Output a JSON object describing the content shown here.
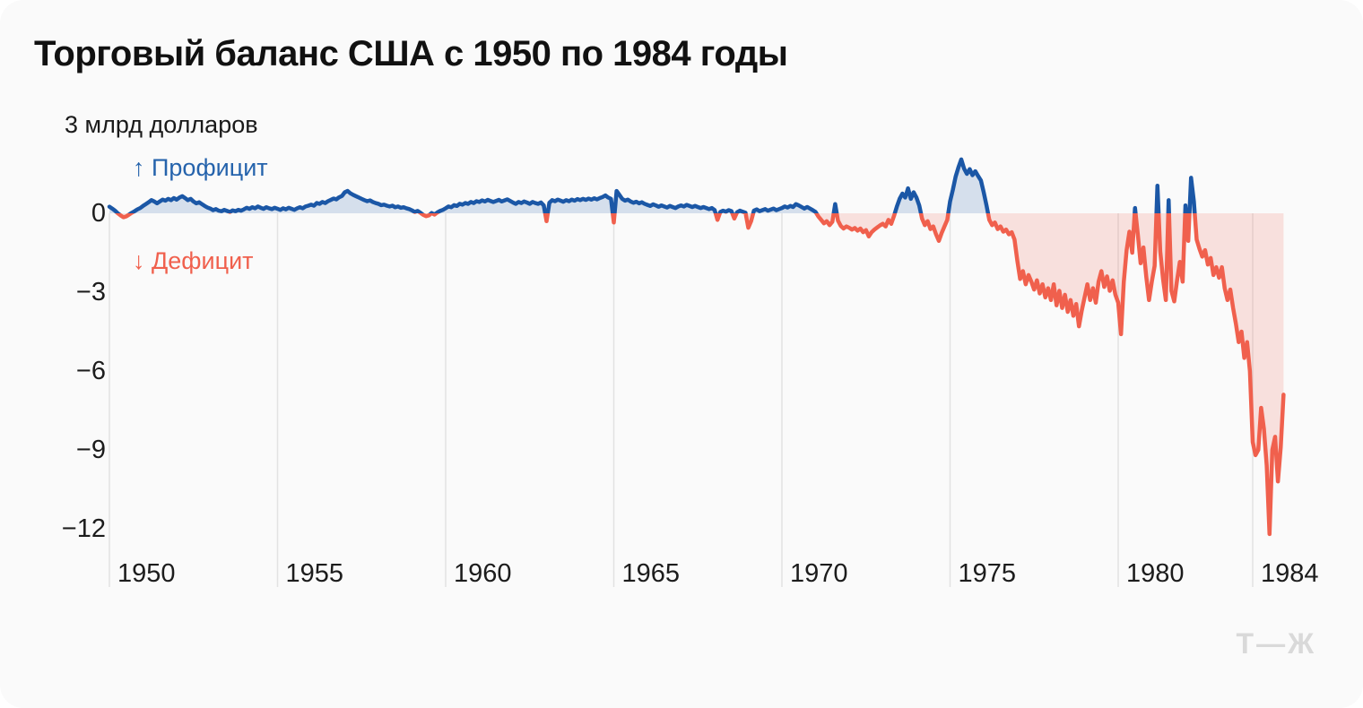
{
  "card": {
    "background": "#fafafa",
    "logo": "Т—Ж"
  },
  "chart_data": {
    "type": "area",
    "title": "Торговый баланс США с 1950 по 1984 годы",
    "unit_label": "3 млрд долларов",
    "ylabel": "млрд долларов",
    "period": "1950-01 — 1984-12",
    "frequency": "monthly",
    "annotations": [
      {
        "text": "↑ Профицит",
        "color": "#2563ac",
        "meaning": "surplus"
      },
      {
        "text": "↓ Дефицит",
        "color": "#f0604d",
        "meaning": "deficit"
      }
    ],
    "x_ticks": [
      1950,
      1955,
      1960,
      1965,
      1970,
      1975,
      1980,
      1984
    ],
    "y_ticks": [
      {
        "value": 0,
        "label": "0"
      },
      {
        "value": -3,
        "label": "−3"
      },
      {
        "value": -6,
        "label": "−6"
      },
      {
        "value": -9,
        "label": "−9"
      },
      {
        "value": -12,
        "label": "−12"
      }
    ],
    "ylim": [
      3,
      -14.25
    ],
    "grid": "vertical-below-zero-only",
    "legend_position": "none",
    "colors": {
      "surplus_line": "#1b57a6",
      "deficit_line": "#f0604d",
      "surplus_fill": "#1b57a6",
      "deficit_fill": "#f0604d",
      "fill_opacity": 0.17,
      "gridline": "#e2e2e2"
    },
    "series": [
      {
        "name": "Торговый баланс США, млрд долларов",
        "start_year": 1950,
        "monthly_values": [
          0.25,
          0.18,
          0.1,
          0.0,
          -0.08,
          -0.15,
          -0.12,
          -0.05,
          0.02,
          0.08,
          0.15,
          0.2,
          0.28,
          0.35,
          0.42,
          0.5,
          0.45,
          0.38,
          0.45,
          0.52,
          0.48,
          0.55,
          0.5,
          0.58,
          0.52,
          0.6,
          0.65,
          0.58,
          0.5,
          0.55,
          0.45,
          0.38,
          0.42,
          0.35,
          0.28,
          0.22,
          0.18,
          0.12,
          0.16,
          0.1,
          0.08,
          0.13,
          0.09,
          0.05,
          0.11,
          0.08,
          0.13,
          0.1,
          0.15,
          0.21,
          0.17,
          0.23,
          0.19,
          0.26,
          0.21,
          0.17,
          0.23,
          0.19,
          0.16,
          0.21,
          0.17,
          0.13,
          0.19,
          0.15,
          0.21,
          0.17,
          0.13,
          0.19,
          0.23,
          0.19,
          0.26,
          0.29,
          0.33,
          0.29,
          0.39,
          0.36,
          0.43,
          0.39,
          0.46,
          0.51,
          0.56,
          0.53,
          0.61,
          0.66,
          0.8,
          0.85,
          0.76,
          0.7,
          0.65,
          0.6,
          0.55,
          0.5,
          0.46,
          0.49,
          0.43,
          0.39,
          0.36,
          0.31,
          0.33,
          0.29,
          0.26,
          0.29,
          0.23,
          0.26,
          0.21,
          0.23,
          0.19,
          0.16,
          0.11,
          0.05,
          0.09,
          0.02,
          -0.06,
          -0.11,
          -0.08,
          0.01,
          -0.05,
          0.03,
          0.09,
          0.13,
          0.19,
          0.26,
          0.23,
          0.31,
          0.28,
          0.36,
          0.33,
          0.39,
          0.36,
          0.43,
          0.39,
          0.46,
          0.43,
          0.49,
          0.45,
          0.51,
          0.47,
          0.43,
          0.47,
          0.51,
          0.45,
          0.49,
          0.53,
          0.47,
          0.41,
          0.36,
          0.43,
          0.39,
          0.45,
          0.41,
          0.36,
          0.43,
          0.39,
          0.36,
          0.41,
          0.3,
          -0.3,
          0.4,
          0.5,
          0.46,
          0.52,
          0.48,
          0.44,
          0.5,
          0.46,
          0.52,
          0.48,
          0.54,
          0.5,
          0.55,
          0.51,
          0.56,
          0.52,
          0.57,
          0.53,
          0.58,
          0.62,
          0.68,
          0.6,
          0.55,
          -0.35,
          0.85,
          0.7,
          0.55,
          0.48,
          0.52,
          0.45,
          0.4,
          0.44,
          0.38,
          0.42,
          0.36,
          0.32,
          0.28,
          0.34,
          0.3,
          0.25,
          0.3,
          0.26,
          0.22,
          0.28,
          0.24,
          0.2,
          0.26,
          0.3,
          0.26,
          0.32,
          0.28,
          0.24,
          0.28,
          0.24,
          0.2,
          0.24,
          0.2,
          0.16,
          0.2,
          0.12,
          -0.25,
          0.05,
          0.1,
          0.06,
          0.12,
          0.08,
          -0.2,
          0.04,
          0.1,
          0.06,
          0.02,
          -0.55,
          -0.3,
          0.1,
          0.15,
          0.08,
          0.12,
          0.16,
          0.1,
          0.14,
          0.18,
          0.12,
          0.16,
          0.2,
          0.26,
          0.22,
          0.28,
          0.24,
          0.35,
          0.3,
          0.24,
          0.18,
          0.24,
          0.18,
          0.12,
          0.05,
          -0.12,
          -0.25,
          -0.38,
          -0.3,
          -0.45,
          -0.32,
          0.35,
          -0.28,
          -0.48,
          -0.58,
          -0.5,
          -0.55,
          -0.62,
          -0.56,
          -0.66,
          -0.58,
          -0.72,
          -0.64,
          -0.88,
          -0.72,
          -0.62,
          -0.54,
          -0.46,
          -0.4,
          -0.5,
          -0.25,
          -0.4,
          -0.1,
          0.25,
          0.55,
          0.75,
          0.6,
          0.95,
          0.55,
          0.8,
          0.6,
          0.3,
          -0.2,
          -0.45,
          -0.3,
          -0.6,
          -0.5,
          -0.8,
          -1.05,
          -0.75,
          -0.5,
          -0.25,
          0.45,
          0.9,
          1.4,
          1.75,
          2.05,
          1.7,
          1.5,
          1.68,
          1.45,
          1.6,
          1.42,
          1.25,
          0.8,
          0.3,
          -0.25,
          -0.45,
          -0.35,
          -0.6,
          -0.5,
          -0.7,
          -0.62,
          -0.8,
          -0.72,
          -1.0,
          -1.8,
          -2.5,
          -2.2,
          -2.7,
          -2.35,
          -2.6,
          -2.9,
          -2.55,
          -3.05,
          -2.7,
          -3.2,
          -2.85,
          -3.3,
          -2.7,
          -3.5,
          -2.95,
          -3.6,
          -3.1,
          -3.75,
          -3.3,
          -3.9,
          -3.45,
          -4.3,
          -3.7,
          -3.2,
          -2.7,
          -3.3,
          -2.85,
          -3.4,
          -2.6,
          -2.2,
          -2.8,
          -2.4,
          -2.95,
          -2.55,
          -3.1,
          -3.4,
          -4.6,
          -2.6,
          -1.4,
          -0.7,
          -1.5,
          0.2,
          -0.8,
          -1.9,
          -1.3,
          -2.4,
          -3.3,
          -2.6,
          -2.0,
          1.05,
          -1.45,
          -2.5,
          -3.3,
          0.5,
          -2.95,
          -3.35,
          -2.55,
          -1.85,
          -2.6,
          0.3,
          -1.05,
          1.35,
          0.45,
          -1.0,
          -1.35,
          -1.65,
          -1.4,
          -1.95,
          -1.7,
          -2.35,
          -2.05,
          -2.45,
          -2.05,
          -2.85,
          -3.3,
          -2.9,
          -3.6,
          -4.2,
          -4.9,
          -4.5,
          -5.5,
          -4.9,
          -6.0,
          -8.7,
          -9.2,
          -9.0,
          -7.4,
          -8.2,
          -9.6,
          -12.2,
          -9.0,
          -8.5,
          -10.2,
          -8.9,
          -6.9
        ]
      }
    ]
  }
}
